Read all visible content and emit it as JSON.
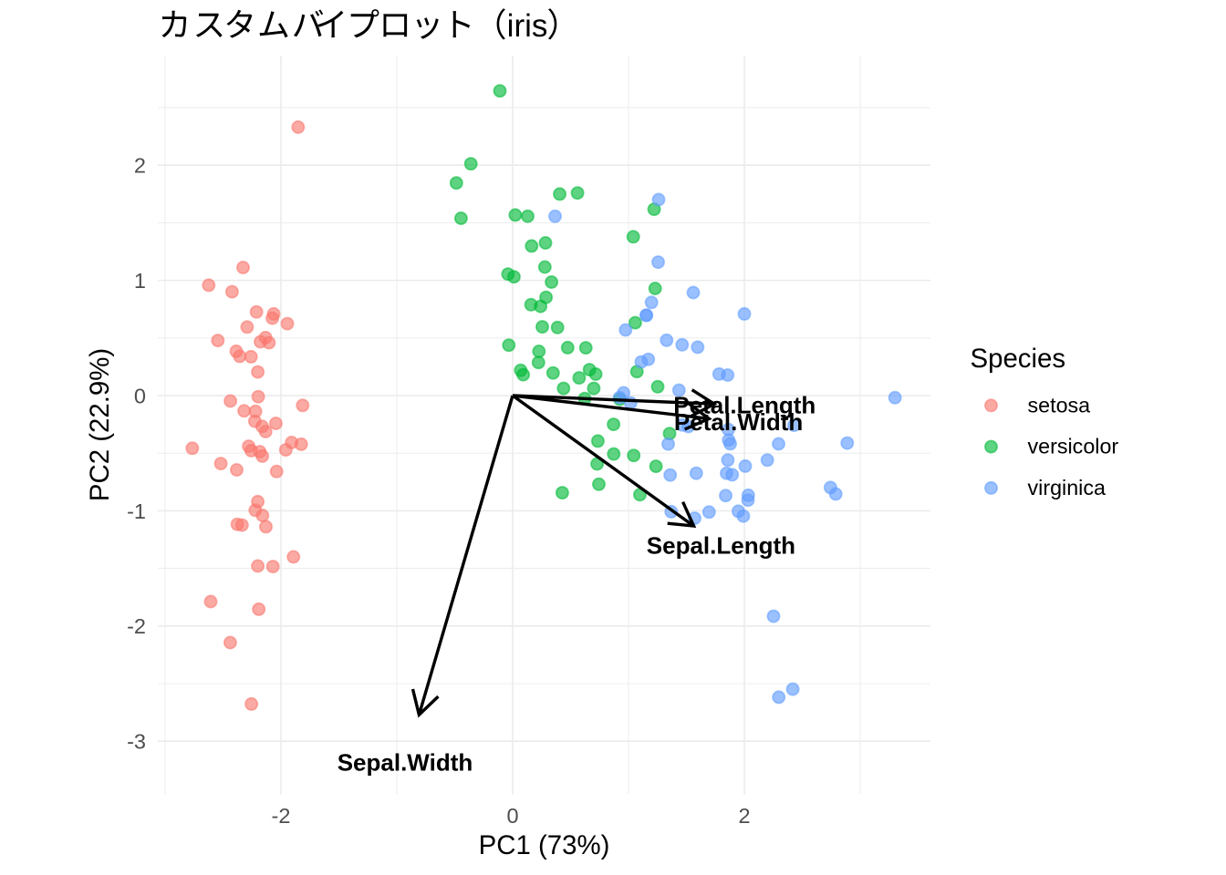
{
  "title": "カスタムバイプロット（iris）",
  "legend": {
    "title": "Species",
    "entries": [
      {
        "label": "setosa",
        "color": "#F8766D"
      },
      {
        "label": "versicolor",
        "color": "#00BA38"
      },
      {
        "label": "virginica",
        "color": "#619CFF"
      }
    ]
  },
  "chart_data": {
    "type": "scatter",
    "title": "カスタムバイプロット（iris）",
    "xlabel": "PC1 (73%)",
    "ylabel": "PC2 (22.9%)",
    "xlim": [
      -3.063,
      3.606
    ],
    "ylim": [
      -3.461,
      2.951
    ],
    "x_ticks": {
      "major": [
        -2,
        0,
        2
      ],
      "labels": [
        "-2",
        "0",
        "2"
      ],
      "minor": [
        -3,
        -1,
        1,
        3
      ]
    },
    "y_ticks": {
      "major": [
        2,
        1,
        0,
        -1,
        -2,
        -3
      ],
      "labels": [
        "2",
        "1",
        "0",
        "-1",
        "-2",
        "-3"
      ],
      "minor": [
        2.5,
        1.5,
        0.5,
        -0.5,
        -1.5,
        -2.5
      ]
    },
    "grid": true,
    "legend_position": "right",
    "point_alpha": 0.63,
    "arrow_color": "#000000",
    "series": [
      {
        "name": "setosa",
        "color": "#F8766D",
        "points": [
          [
            -2.257,
            -0.478
          ],
          [
            -2.074,
            0.672
          ],
          [
            -2.356,
            0.341
          ],
          [
            -2.292,
            0.595
          ],
          [
            -2.382,
            -0.645
          ],
          [
            -2.069,
            -1.484
          ],
          [
            -2.436,
            -0.047
          ],
          [
            -2.225,
            -0.222
          ],
          [
            -2.327,
            1.112
          ],
          [
            -2.177,
            0.467
          ],
          [
            -2.159,
            -1.04
          ],
          [
            -2.318,
            -0.133
          ],
          [
            -2.211,
            0.726
          ],
          [
            -2.624,
            0.958
          ],
          [
            -2.191,
            -1.854
          ],
          [
            -2.255,
            -2.677
          ],
          [
            -2.2,
            -1.479
          ],
          [
            -2.183,
            -0.487
          ],
          [
            -1.892,
            -1.4
          ],
          [
            -2.336,
            -1.124
          ],
          [
            -1.908,
            -0.407
          ],
          [
            -2.2,
            -0.921
          ],
          [
            -2.765,
            -0.457
          ],
          [
            -1.813,
            -0.085
          ],
          [
            -2.22,
            -0.137
          ],
          [
            -1.945,
            0.624
          ],
          [
            -2.044,
            -0.241
          ],
          [
            -2.161,
            -0.525
          ],
          [
            -2.132,
            -0.312
          ],
          [
            -2.258,
            0.337
          ],
          [
            -2.133,
            0.503
          ],
          [
            -1.825,
            -0.422
          ],
          [
            -2.606,
            -1.788
          ],
          [
            -2.438,
            -2.144
          ],
          [
            -2.103,
            0.459
          ],
          [
            -2.2,
            0.205
          ],
          [
            -2.038,
            -0.659
          ],
          [
            -2.519,
            -0.59
          ],
          [
            -2.422,
            0.901
          ],
          [
            -2.162,
            -0.268
          ],
          [
            -2.279,
            -0.44
          ],
          [
            -1.852,
            2.33
          ],
          [
            -2.545,
            0.478
          ],
          [
            -1.958,
            -0.471
          ],
          [
            -2.13,
            -1.138
          ],
          [
            -2.063,
            0.709
          ],
          [
            -2.377,
            -1.117
          ],
          [
            -2.386,
            0.385
          ],
          [
            -2.222,
            -0.995
          ],
          [
            -2.196,
            -0.009
          ]
        ]
      },
      {
        "name": "versicolor",
        "color": "#00BA38",
        "points": [
          [
            1.098,
            -0.86
          ],
          [
            0.729,
            -0.593
          ],
          [
            1.237,
            -0.614
          ],
          [
            0.406,
            1.749
          ],
          [
            1.072,
            0.208
          ],
          [
            0.387,
            0.591
          ],
          [
            0.744,
            -0.77
          ],
          [
            -0.486,
            1.846
          ],
          [
            0.925,
            -0.032
          ],
          [
            0.011,
            1.031
          ],
          [
            -0.11,
            2.645
          ],
          [
            0.439,
            0.063
          ],
          [
            0.56,
            1.759
          ],
          [
            0.717,
            0.186
          ],
          [
            -0.033,
            0.438
          ],
          [
            0.872,
            -0.507
          ],
          [
            0.349,
            0.196
          ],
          [
            0.158,
            0.789
          ],
          [
            1.221,
            1.617
          ],
          [
            0.164,
            1.298
          ],
          [
            0.735,
            -0.395
          ],
          [
            0.475,
            0.416
          ],
          [
            1.23,
            0.93
          ],
          [
            0.631,
            0.415
          ],
          [
            0.7,
            0.063
          ],
          [
            0.871,
            -0.25
          ],
          [
            1.252,
            0.077
          ],
          [
            1.354,
            -0.33
          ],
          [
            0.663,
            0.225
          ],
          [
            -0.04,
            1.055
          ],
          [
            0.13,
            1.557
          ],
          [
            0.023,
            1.567
          ],
          [
            0.241,
            0.775
          ],
          [
            1.058,
            0.632
          ],
          [
            0.223,
            0.287
          ],
          [
            0.428,
            -0.843
          ],
          [
            1.045,
            -0.52
          ],
          [
            1.041,
            1.378
          ],
          [
            0.069,
            0.219
          ],
          [
            0.283,
            1.325
          ],
          [
            0.278,
            1.116
          ],
          [
            0.622,
            -0.025
          ],
          [
            0.335,
            0.985
          ],
          [
            -0.361,
            2.012
          ],
          [
            0.288,
            0.853
          ],
          [
            0.091,
            0.181
          ],
          [
            0.227,
            0.384
          ],
          [
            0.574,
            0.154
          ],
          [
            -0.446,
            1.539
          ],
          [
            0.256,
            0.597
          ]
        ]
      },
      {
        "name": "virginica",
        "color": "#619CFF",
        "points": [
          [
            1.838,
            -0.868
          ],
          [
            1.154,
            0.697
          ],
          [
            2.198,
            -0.56
          ],
          [
            1.435,
            0.047
          ],
          [
            1.862,
            -0.294
          ],
          [
            2.743,
            -0.798
          ],
          [
            0.366,
            1.556
          ],
          [
            2.295,
            -0.419
          ],
          [
            2.0,
            0.709
          ],
          [
            2.252,
            -1.915
          ],
          [
            1.36,
            -0.69
          ],
          [
            1.597,
            0.42
          ],
          [
            1.878,
            -0.418
          ],
          [
            1.256,
            1.158
          ],
          [
            1.463,
            0.441
          ],
          [
            1.585,
            -0.674
          ],
          [
            1.467,
            -0.255
          ],
          [
            2.418,
            -2.548
          ],
          [
            3.3,
            -0.018
          ],
          [
            1.26,
            1.701
          ],
          [
            2.031,
            -0.907
          ],
          [
            0.975,
            0.57
          ],
          [
            2.888,
            -0.412
          ],
          [
            1.329,
            0.48
          ],
          [
            1.695,
            -1.011
          ],
          [
            1.948,
            -1.004
          ],
          [
            1.171,
            0.315
          ],
          [
            1.018,
            -0.064
          ],
          [
            1.782,
            0.187
          ],
          [
            1.857,
            -0.56
          ],
          [
            2.428,
            -0.258
          ],
          [
            2.297,
            -2.618
          ],
          [
            1.856,
            0.178
          ],
          [
            1.11,
            0.292
          ],
          [
            1.198,
            0.809
          ],
          [
            2.789,
            -0.854
          ],
          [
            1.571,
            -1.065
          ],
          [
            1.342,
            -0.421
          ],
          [
            0.922,
            -0.017
          ],
          [
            1.846,
            -0.674
          ],
          [
            2.008,
            -0.612
          ],
          [
            1.895,
            -0.687
          ],
          [
            1.154,
            0.697
          ],
          [
            2.034,
            -0.865
          ],
          [
            1.991,
            -1.046
          ],
          [
            1.864,
            -0.386
          ],
          [
            1.559,
            0.894
          ],
          [
            1.516,
            -0.268
          ],
          [
            1.368,
            -1.008
          ],
          [
            0.957,
            0.024
          ]
        ]
      }
    ],
    "loadings": [
      {
        "label": "Sepal.Length",
        "x": 1.563,
        "y": -1.132,
        "label_x": 1.798,
        "label_y": -1.302
      },
      {
        "label": "Sepal.Width",
        "x": -0.808,
        "y": -2.77,
        "label_x": -0.929,
        "label_y": -3.185
      },
      {
        "label": "Petal.Length",
        "x": 1.741,
        "y": -0.073,
        "label_x": 2.002,
        "label_y": -0.084
      },
      {
        "label": "Petal.Width",
        "x": 1.695,
        "y": -0.201,
        "label_x": 1.949,
        "label_y": -0.231
      }
    ]
  },
  "colors": {
    "background": "#FFFFFF",
    "grid": "#EBEBEB",
    "tick_label": "#4D4D4D",
    "text": "#000000",
    "setosa": "#F8766D",
    "versicolor": "#00BA38",
    "virginica": "#619CFF"
  }
}
